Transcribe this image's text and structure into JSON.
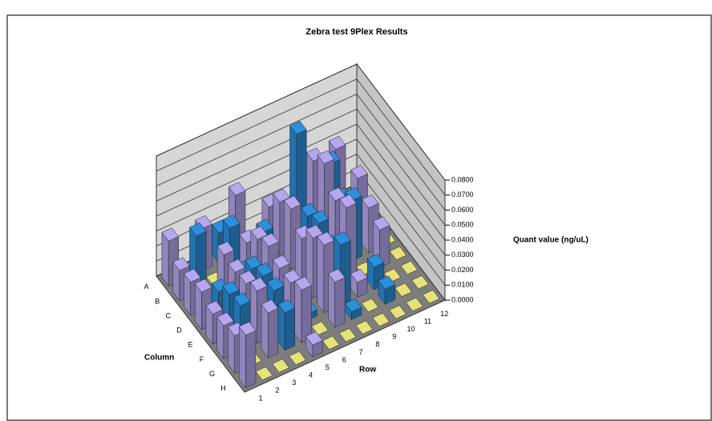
{
  "chart_data": {
    "type": "bar3d",
    "title": "Zebra test 9Plex Results",
    "xlabel": "Row",
    "ylabel": "Column",
    "zlabel": "Quant value (ng/uL)",
    "categories": [
      "1",
      "2",
      "3",
      "4",
      "5",
      "6",
      "7",
      "8",
      "9",
      "10",
      "11",
      "12"
    ],
    "category_colors": [
      "#b6a6ee",
      "#2c8fdc",
      "#b6a6ee",
      "#2c8fdc",
      "#b6a6ee",
      "#2c8fdc",
      "#b6a6ee",
      "#2c8fdc",
      "#b6a6ee",
      "#2c8fdc",
      "#b6a6ee",
      "#2c8fdc"
    ],
    "zero_color": "#e6e27a",
    "series": [
      {
        "name": "A",
        "values": [
          0.03,
          0,
          0.028,
          0.02,
          0.04,
          0,
          0.022,
          0.008,
          0.03,
          0.025,
          0.04,
          0
        ]
      },
      {
        "name": "B",
        "values": [
          0.02,
          0.038,
          0,
          0.033,
          0.018,
          0.02,
          0.035,
          0.075,
          0.052,
          0.045,
          0,
          0
        ]
      },
      {
        "name": "C",
        "values": [
          0.022,
          0,
          0.03,
          0.012,
          0.03,
          0.005,
          0.04,
          0.03,
          0.06,
          0.03,
          0.04,
          0
        ]
      },
      {
        "name": "D",
        "values": [
          0.025,
          0.02,
          0.028,
          0.025,
          0.035,
          0,
          0.03,
          0.035,
          0.045,
          0.04,
          0.03,
          0
        ]
      },
      {
        "name": "E",
        "values": [
          0.02,
          0.028,
          0.03,
          0.03,
          0.03,
          0.005,
          0.04,
          0.028,
          0.05,
          0,
          0.025,
          0
        ]
      },
      {
        "name": "F",
        "values": [
          0.022,
          0.03,
          0.035,
          0.03,
          0.03,
          0.004,
          0.045,
          0.04,
          0.01,
          0.015,
          0,
          0
        ]
      },
      {
        "name": "G",
        "values": [
          0.025,
          0,
          0.03,
          0.025,
          0.035,
          0,
          0.03,
          0.005,
          0,
          0.01,
          0,
          0
        ]
      },
      {
        "name": "H",
        "values": [
          0.035,
          0,
          0,
          0,
          0.008,
          0,
          0,
          0,
          0,
          0,
          0,
          0
        ]
      }
    ],
    "zlim": [
      0,
      0.08
    ],
    "zticks": [
      {
        "value": 0,
        "label": "0.0000"
      },
      {
        "value": 0.01,
        "label": "0.0100"
      },
      {
        "value": 0.02,
        "label": "0.0200"
      },
      {
        "value": 0.03,
        "label": "0.0300"
      },
      {
        "value": 0.04,
        "label": "0.0400"
      },
      {
        "value": 0.05,
        "label": "0.0500"
      },
      {
        "value": 0.06,
        "label": "0.0600"
      },
      {
        "value": 0.07,
        "label": "0.0700"
      },
      {
        "value": 0.08,
        "label": "0.0800"
      }
    ],
    "grid": true
  }
}
